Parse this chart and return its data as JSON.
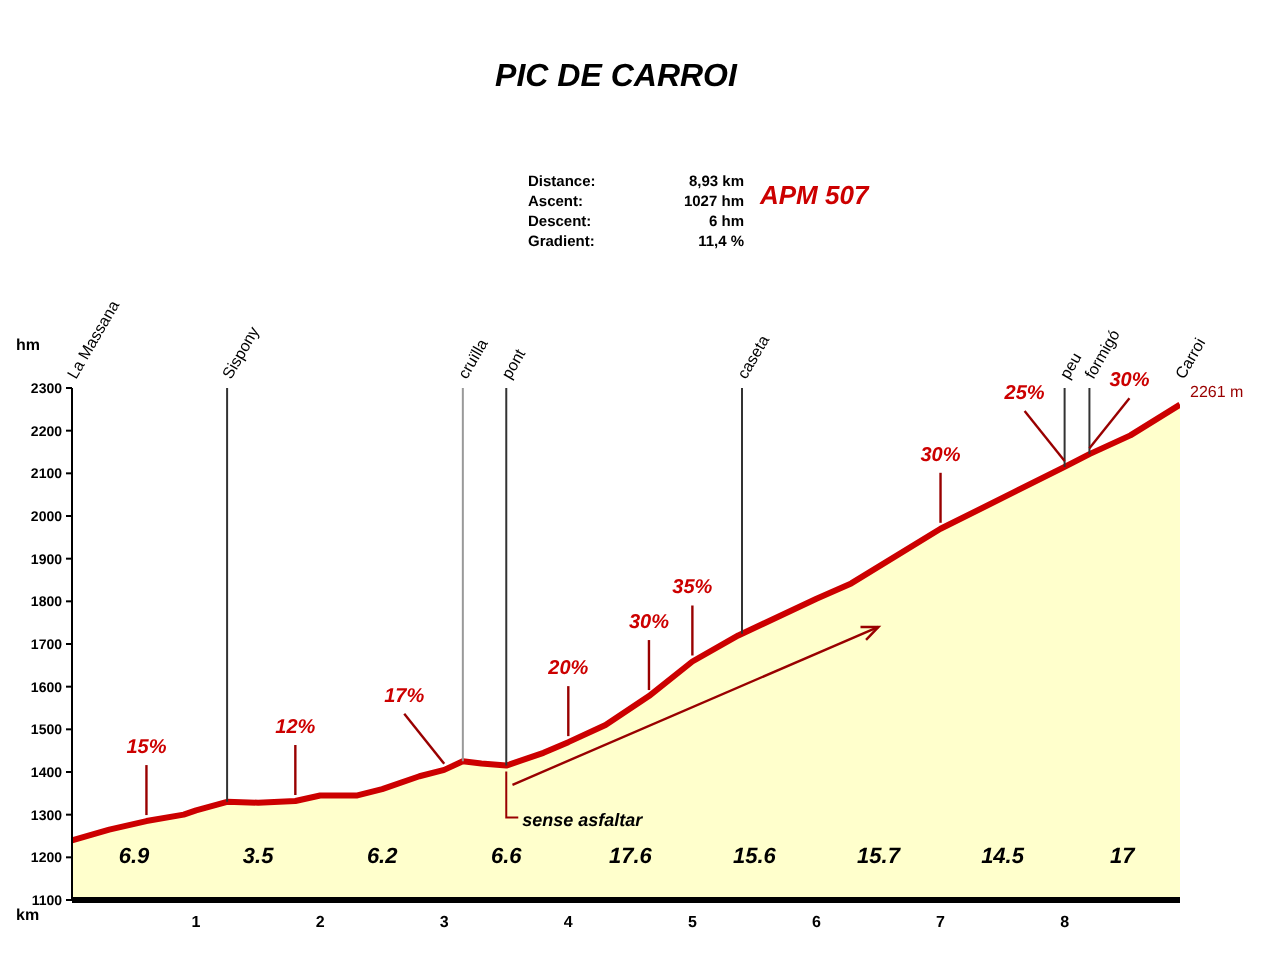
{
  "chart_data": {
    "type": "area",
    "title": "PIC DE CARROI",
    "xlabel": "km",
    "ylabel": "hm",
    "x": [
      0,
      0.3,
      0.6,
      0.9,
      1.0,
      1.25,
      1.5,
      1.8,
      2.0,
      2.3,
      2.5,
      2.8,
      3.0,
      3.15,
      3.3,
      3.5,
      3.8,
      4.0,
      4.3,
      4.65,
      5.0,
      5.37,
      6.0,
      6.28,
      7.0,
      7.6,
      8.0,
      8.2,
      8.53,
      8.93
    ],
    "series": [
      {
        "color": "#cc0000",
        "values": [
          1240,
          1265,
          1285,
          1300,
          1310,
          1330,
          1328,
          1332,
          1345,
          1345,
          1360,
          1390,
          1405,
          1425,
          1420,
          1415,
          1445,
          1470,
          1510,
          1578,
          1659,
          1720,
          1806,
          1842,
          1970,
          2057,
          2115,
          2145,
          2189,
          2261
        ]
      }
    ],
    "xlim": [
      0,
      8.93
    ],
    "xticks": [
      1,
      2,
      3,
      4,
      5,
      6,
      7,
      8
    ],
    "ylim": [
      1100,
      2300
    ],
    "yticks": [
      1100,
      1200,
      1300,
      1400,
      1500,
      1600,
      1700,
      1800,
      1900,
      2000,
      2100,
      2200,
      2300
    ],
    "ref_lines": [
      {
        "axis": "x",
        "value": 1.25,
        "label": "Sispony"
      },
      {
        "axis": "x",
        "value": 3.15,
        "label": "cruïlla",
        "color": "#999999"
      },
      {
        "axis": "x",
        "value": 3.5,
        "label": "pont"
      },
      {
        "axis": "x",
        "value": 5.4,
        "label": "caseta"
      },
      {
        "axis": "x",
        "value": 8.0,
        "label": "peu"
      },
      {
        "axis": "x",
        "value": 8.2,
        "label": "formigó"
      }
    ],
    "annotations": [
      "Distance:",
      "8,93 km",
      "Ascent:",
      "1027 hm",
      "Descent:",
      "6 hm",
      "Gradient:",
      "11,4 %",
      "APM 507",
      "6.9",
      "3.5",
      "6.2",
      "6.6",
      "17.6",
      "15.6",
      "15.7",
      "14.5",
      "17",
      "La Massana",
      "Carroi",
      {
        "text": "2261 m",
        "x": 8.93,
        "y": 2261
      },
      {
        "text": "15%",
        "x": 0.6,
        "y": 1285
      },
      {
        "text": "12%",
        "x": 1.8,
        "y": 1332
      },
      {
        "text": "17%",
        "x": 3.0,
        "y": 1405
      },
      {
        "text": "20%",
        "x": 4.0,
        "y": 1470
      },
      {
        "text": "30%",
        "x": 4.65,
        "y": 1578
      },
      {
        "text": "35%",
        "x": 5.0,
        "y": 1659
      },
      {
        "text": "30%",
        "x": 7.0,
        "y": 1970
      },
      {
        "text": "25%",
        "x": 8.0,
        "y": 2115
      },
      {
        "text": "30%",
        "x": 8.2,
        "y": 2145
      },
      {
        "text": "sense asfaltar",
        "x": 3.5,
        "y": 1415
      }
    ]
  }
}
